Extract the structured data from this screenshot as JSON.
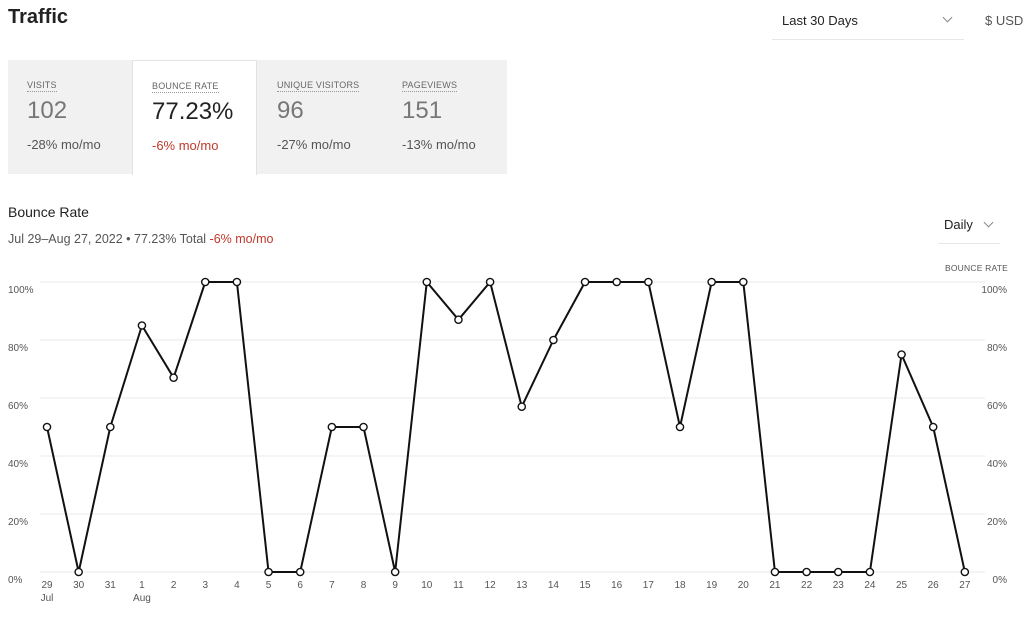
{
  "header": {
    "title": "Traffic",
    "range_label": "Last 30 Days",
    "currency": "$ USD"
  },
  "stats": [
    {
      "label": "VISITS",
      "value": "102",
      "change": "-28% mo/mo"
    },
    {
      "label": "BOUNCE RATE",
      "value": "77.23%",
      "change": "-6% mo/mo"
    },
    {
      "label": "UNIQUE VISITORS",
      "value": "96",
      "change": "-27% mo/mo"
    },
    {
      "label": "PAGEVIEWS",
      "value": "151",
      "change": "-13% mo/mo"
    }
  ],
  "chart_section": {
    "title": "Bounce Rate",
    "subtitle_prefix": "Jul 29–Aug 27, 2022 • 77.23% Total ",
    "subtitle_change": "-6% mo/mo",
    "interval": "Daily"
  },
  "colors": {
    "line": "#111111",
    "negative": "#c0392b",
    "grid": "#e8e8e8",
    "stats_bg": "#f1f1f1"
  },
  "chart_data": {
    "type": "line",
    "right_axis_title": "BOUNCE RATE",
    "categories": [
      "29",
      "30",
      "31",
      "1",
      "2",
      "3",
      "4",
      "5",
      "6",
      "7",
      "8",
      "9",
      "10",
      "11",
      "12",
      "13",
      "14",
      "15",
      "16",
      "17",
      "18",
      "19",
      "20",
      "21",
      "22",
      "23",
      "24",
      "25",
      "26",
      "27"
    ],
    "month_labels": {
      "0": "Jul",
      "3": "Aug"
    },
    "values": [
      50,
      0,
      50,
      85,
      67,
      100,
      100,
      0,
      0,
      50,
      50,
      0,
      100,
      87,
      100,
      57,
      80,
      100,
      100,
      100,
      50,
      100,
      100,
      0,
      0,
      0,
      0,
      75,
      50,
      0
    ],
    "ylim": [
      0,
      100
    ],
    "yticks": [
      0,
      20,
      40,
      60,
      80,
      100
    ],
    "ytick_labels": [
      "0%",
      "20%",
      "40%",
      "60%",
      "80%",
      "100%"
    ],
    "grid": true
  }
}
